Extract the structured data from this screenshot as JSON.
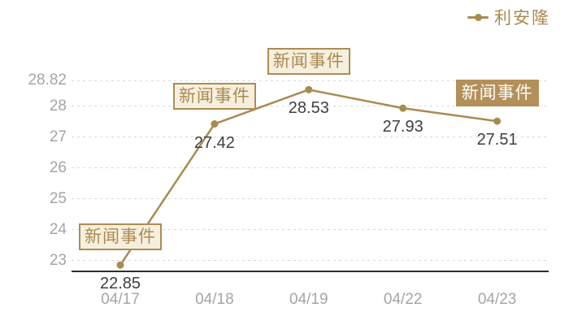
{
  "legend": {
    "series_label": "利安隆",
    "position": "top-right"
  },
  "chart_data": {
    "type": "line",
    "title": "",
    "series_name": "利安隆",
    "categories": [
      "04/17",
      "04/18",
      "04/19",
      "04/22",
      "04/23"
    ],
    "values": [
      22.85,
      27.42,
      28.53,
      27.93,
      27.51
    ],
    "value_labels": [
      "22.85",
      "27.42",
      "28.53",
      "27.93",
      "27.51"
    ],
    "yticks": [
      {
        "value": 23,
        "label": "23"
      },
      {
        "value": 24,
        "label": "24"
      },
      {
        "value": 25,
        "label": "25"
      },
      {
        "value": 26,
        "label": "26"
      },
      {
        "value": 27,
        "label": "27"
      },
      {
        "value": 28,
        "label": "28"
      },
      {
        "value": 28.82,
        "label": "28.82"
      }
    ],
    "ylim": [
      22.65,
      28.82
    ],
    "xlabel": "",
    "ylabel": "",
    "grid": "horizontal-dashed",
    "legend_position": "top-right",
    "annotations": [
      {
        "text": "新闻事件",
        "point_index": 0,
        "variant": "outline"
      },
      {
        "text": "新闻事件",
        "point_index": 1,
        "variant": "outline"
      },
      {
        "text": "新闻事件",
        "point_index": 2,
        "variant": "outline"
      },
      {
        "text": "新闻事件",
        "point_index": 4,
        "variant": "filled"
      }
    ]
  },
  "colors": {
    "line": "#a98b50",
    "point": "#a98b50",
    "gridline": "#d8d8d8",
    "axis": "#2f2f2f",
    "tick_text": "#a5a5a5",
    "value_text": "#3f3f3f",
    "annotation_outline_bg": "#f7efde",
    "annotation_outline_text": "#a98b50",
    "annotation_filled_bg": "#b3905a",
    "annotation_filled_text": "#fffdf6"
  }
}
